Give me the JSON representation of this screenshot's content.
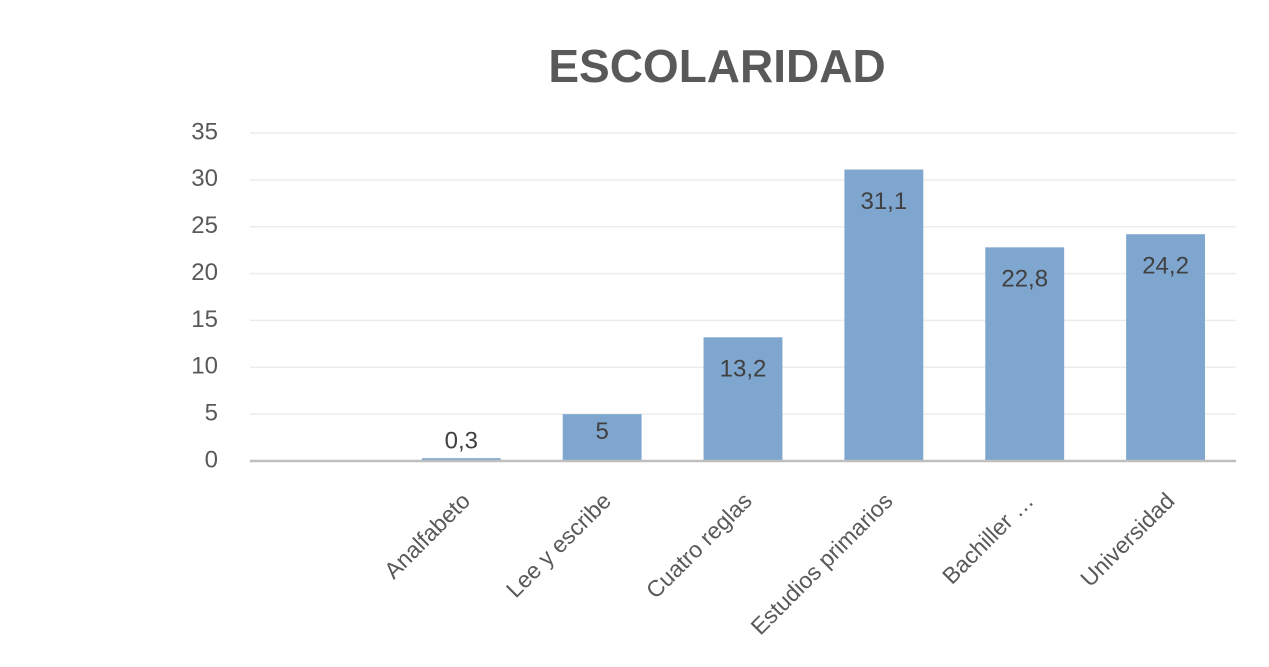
{
  "chart_data": {
    "type": "bar",
    "title": "ESCOLARIDAD",
    "categories": [
      null,
      "Analfabeto",
      "Lee y escribe",
      "Cuatro reglas",
      "Estudios primarios",
      "Bachiller …",
      "Universidad"
    ],
    "values": [
      null,
      0.3,
      5,
      13.2,
      31.1,
      22.8,
      24.2
    ],
    "value_labels": [
      null,
      "0,3",
      "5",
      "13,2",
      "31,1",
      "22,8",
      "24,2"
    ],
    "color": "#7fa6cf",
    "ylim": [
      0,
      35
    ],
    "yticks": [
      0,
      5,
      10,
      15,
      20,
      25,
      30,
      35
    ],
    "grid": true
  }
}
